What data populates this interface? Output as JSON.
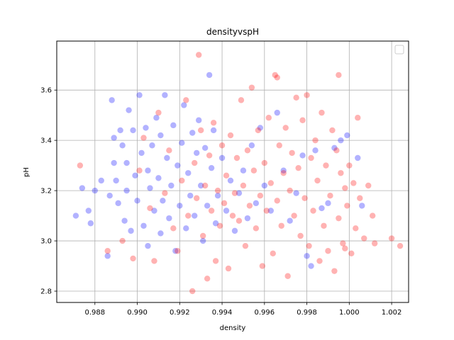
{
  "chart_data": {
    "type": "scatter",
    "title": "densityvspH",
    "xlabel": "density",
    "ylabel": "pH",
    "xlim": [
      0.9862,
      1.0028
    ],
    "ylim": [
      2.755,
      3.795
    ],
    "xticks": [
      0.988,
      0.99,
      0.992,
      0.994,
      0.996,
      0.998,
      1.0,
      1.002
    ],
    "xtick_labels": [
      "0.988",
      "0.990",
      "0.992",
      "0.994",
      "0.996",
      "0.998",
      "1.000",
      "1.002"
    ],
    "yticks": [
      2.8,
      3.0,
      3.2,
      3.4,
      3.6
    ],
    "ytick_labels": [
      "2.8",
      "3.0",
      "3.2",
      "3.4",
      "3.6"
    ],
    "grid": true,
    "legend": {
      "placement": "top-right",
      "entries": []
    },
    "series": [
      {
        "color": "#0000ff",
        "opacity": 0.3,
        "points": [
          [
            0.9871,
            3.1
          ],
          [
            0.9874,
            3.21
          ],
          [
            0.9877,
            3.12
          ],
          [
            0.9878,
            3.07
          ],
          [
            0.988,
            3.2
          ],
          [
            0.9883,
            3.24
          ],
          [
            0.9886,
            2.94
          ],
          [
            0.9887,
            3.18
          ],
          [
            0.9888,
            3.56
          ],
          [
            0.9889,
            3.31
          ],
          [
            0.9889,
            3.41
          ],
          [
            0.989,
            3.24
          ],
          [
            0.9891,
            3.15
          ],
          [
            0.9892,
            3.44
          ],
          [
            0.9893,
            3.38
          ],
          [
            0.9894,
            3.08
          ],
          [
            0.9895,
            3.31
          ],
          [
            0.9895,
            3.2
          ],
          [
            0.9896,
            3.52
          ],
          [
            0.9897,
            3.04
          ],
          [
            0.9898,
            3.44
          ],
          [
            0.9899,
            3.26
          ],
          [
            0.99,
            3.16
          ],
          [
            0.9901,
            3.58
          ],
          [
            0.9902,
            3.35
          ],
          [
            0.9903,
            3.06
          ],
          [
            0.9904,
            3.45
          ],
          [
            0.9905,
            3.28
          ],
          [
            0.9905,
            2.98
          ],
          [
            0.9906,
            3.21
          ],
          [
            0.9907,
            3.38
          ],
          [
            0.9908,
            3.12
          ],
          [
            0.9909,
            3.49
          ],
          [
            0.991,
            3.25
          ],
          [
            0.9911,
            3.03
          ],
          [
            0.9911,
            3.42
          ],
          [
            0.9912,
            3.16
          ],
          [
            0.9913,
            3.58
          ],
          [
            0.9914,
            3.33
          ],
          [
            0.9915,
            3.09
          ],
          [
            0.9916,
            3.22
          ],
          [
            0.9917,
            3.46
          ],
          [
            0.9918,
            2.96
          ],
          [
            0.9919,
            3.3
          ],
          [
            0.992,
            3.14
          ],
          [
            0.9921,
            3.39
          ],
          [
            0.9922,
            3.54
          ],
          [
            0.9923,
            3.05
          ],
          [
            0.9924,
            3.27
          ],
          [
            0.9925,
            3.18
          ],
          [
            0.9926,
            3.43
          ],
          [
            0.9927,
            3.1
          ],
          [
            0.9928,
            3.35
          ],
          [
            0.9929,
            3.48
          ],
          [
            0.993,
            3.22
          ],
          [
            0.9931,
            3.0
          ],
          [
            0.9932,
            3.37
          ],
          [
            0.9933,
            3.14
          ],
          [
            0.9934,
            3.66
          ],
          [
            0.9935,
            3.29
          ],
          [
            0.9936,
            3.44
          ],
          [
            0.9937,
            3.07
          ],
          [
            0.9938,
            3.18
          ],
          [
            0.994,
            3.33
          ],
          [
            0.9942,
            3.12
          ],
          [
            0.9944,
            3.24
          ],
          [
            0.9946,
            3.04
          ],
          [
            0.9948,
            3.19
          ],
          [
            0.995,
            3.28
          ],
          [
            0.9952,
            3.09
          ],
          [
            0.9954,
            3.38
          ],
          [
            0.9956,
            3.15
          ],
          [
            0.9958,
            3.45
          ],
          [
            0.996,
            3.22
          ],
          [
            0.9963,
            3.12
          ],
          [
            0.9966,
            3.51
          ],
          [
            0.9969,
            3.28
          ],
          [
            0.9972,
            3.08
          ],
          [
            0.9975,
            3.19
          ],
          [
            0.9978,
            3.34
          ],
          [
            0.998,
            2.94
          ],
          [
            0.9982,
            2.9
          ],
          [
            0.9984,
            3.36
          ],
          [
            0.9987,
            3.13
          ],
          [
            0.999,
            3.15
          ],
          [
            0.9993,
            3.37
          ],
          [
            0.9996,
            3.4
          ],
          [
            0.9999,
            3.42
          ],
          [
            1.0004,
            3.33
          ],
          [
            1.0006,
            3.14
          ]
        ]
      },
      {
        "color": "#ff0000",
        "opacity": 0.3,
        "points": [
          [
            0.9873,
            3.3
          ],
          [
            0.9886,
            2.96
          ],
          [
            0.9893,
            3.0
          ],
          [
            0.9898,
            2.93
          ],
          [
            0.9901,
            3.28
          ],
          [
            0.9903,
            3.41
          ],
          [
            0.9906,
            3.13
          ],
          [
            0.9908,
            2.92
          ],
          [
            0.991,
            3.51
          ],
          [
            0.9913,
            3.19
          ],
          [
            0.9915,
            3.36
          ],
          [
            0.9917,
            3.05
          ],
          [
            0.9919,
            2.96
          ],
          [
            0.9921,
            3.24
          ],
          [
            0.9923,
            3.56
          ],
          [
            0.9924,
            3.1
          ],
          [
            0.9926,
            2.8
          ],
          [
            0.9927,
            3.31
          ],
          [
            0.9928,
            3.17
          ],
          [
            0.9929,
            3.74
          ],
          [
            0.993,
            3.44
          ],
          [
            0.9931,
            3.02
          ],
          [
            0.9932,
            3.22
          ],
          [
            0.9933,
            2.85
          ],
          [
            0.9934,
            3.34
          ],
          [
            0.9935,
            3.12
          ],
          [
            0.9936,
            3.47
          ],
          [
            0.9937,
            2.92
          ],
          [
            0.9938,
            3.2
          ],
          [
            0.9939,
            3.06
          ],
          [
            0.994,
            3.38
          ],
          [
            0.9941,
            3.15
          ],
          [
            0.9942,
            3.26
          ],
          [
            0.9943,
            2.89
          ],
          [
            0.9944,
            3.42
          ],
          [
            0.9945,
            3.1
          ],
          [
            0.9946,
            3.19
          ],
          [
            0.9947,
            3.33
          ],
          [
            0.9948,
            3.08
          ],
          [
            0.9949,
            3.56
          ],
          [
            0.995,
            3.22
          ],
          [
            0.9951,
            2.98
          ],
          [
            0.9952,
            3.36
          ],
          [
            0.9953,
            3.14
          ],
          [
            0.9954,
            3.61
          ],
          [
            0.9955,
            3.28
          ],
          [
            0.9956,
            3.05
          ],
          [
            0.9957,
            3.44
          ],
          [
            0.9958,
            3.18
          ],
          [
            0.9959,
            2.9
          ],
          [
            0.996,
            3.31
          ],
          [
            0.9961,
            3.12
          ],
          [
            0.9962,
            3.49
          ],
          [
            0.9963,
            3.23
          ],
          [
            0.9964,
            2.95
          ],
          [
            0.9965,
            3.66
          ],
          [
            0.9966,
            3.16
          ],
          [
            0.9967,
            3.38
          ],
          [
            0.9968,
            3.06
          ],
          [
            0.9969,
            3.27
          ],
          [
            0.997,
            3.45
          ],
          [
            0.9971,
            2.86
          ],
          [
            0.9972,
            3.2
          ],
          [
            0.9973,
            3.35
          ],
          [
            0.9974,
            3.1
          ],
          [
            0.9975,
            3.57
          ],
          [
            0.9976,
            3.29
          ],
          [
            0.9977,
            3.02
          ],
          [
            0.9978,
            3.48
          ],
          [
            0.9979,
            3.17
          ],
          [
            0.998,
            3.58
          ],
          [
            0.9981,
            2.98
          ],
          [
            0.9982,
            3.33
          ],
          [
            0.9983,
            3.12
          ],
          [
            0.9984,
            3.4
          ],
          [
            0.9985,
            3.24
          ],
          [
            0.9986,
            2.92
          ],
          [
            0.9987,
            3.51
          ],
          [
            0.9988,
            3.06
          ],
          [
            0.9989,
            3.3
          ],
          [
            0.999,
            2.96
          ],
          [
            0.9991,
            3.18
          ],
          [
            0.9992,
            3.44
          ],
          [
            0.9993,
            2.88
          ],
          [
            0.9994,
            3.36
          ],
          [
            0.9995,
            3.09
          ],
          [
            0.9996,
            3.27
          ],
          [
            0.9997,
            2.99
          ],
          [
            0.9998,
            3.21
          ],
          [
            0.9999,
            3.14
          ],
          [
            1.0,
            3.3
          ],
          [
            1.0001,
            2.95
          ],
          [
            1.0002,
            3.23
          ],
          [
            1.0003,
            3.05
          ],
          [
            1.0004,
            3.49
          ],
          [
            1.0005,
            3.17
          ],
          [
            1.0007,
            3.01
          ],
          [
            1.0009,
            3.22
          ],
          [
            1.0011,
            3.1
          ],
          [
            1.0012,
            2.99
          ],
          [
            1.002,
            3.01
          ],
          [
            1.0024,
            2.98
          ],
          [
            0.9995,
            3.66
          ],
          [
            0.9966,
            3.65
          ],
          [
            0.9998,
            2.97
          ]
        ]
      }
    ]
  }
}
